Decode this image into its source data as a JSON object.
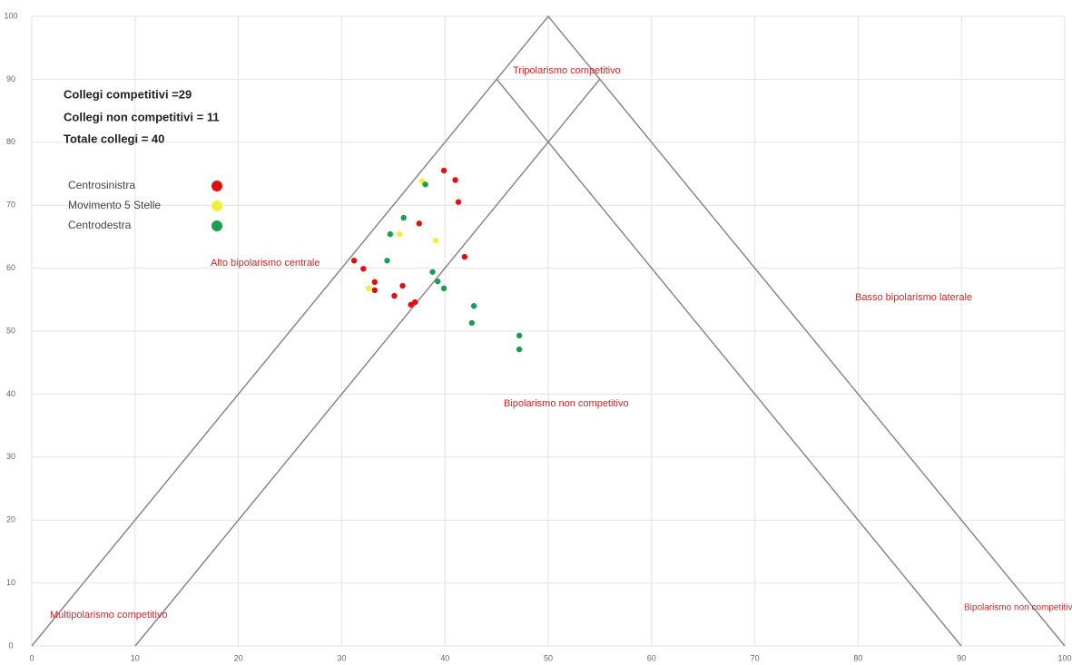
{
  "chart_data": {
    "type": "scatter",
    "info": [
      "Collegi competitivi =29",
      "Collegi non competitivi = 11",
      "Totale collegi = 40"
    ],
    "annotations": [
      "Tripolarismo competitivo",
      "Alto bipolarismo centrale",
      "Bipolarismo non competitivo",
      "Basso bipolarismo laterale",
      "Multipolarismo competitivo",
      "Bipolarismo non competitivo"
    ],
    "xlim": [
      0,
      100
    ],
    "ylim": [
      0,
      100
    ],
    "xticks": [
      0,
      10,
      20,
      30,
      40,
      50,
      60,
      70,
      80,
      90,
      100
    ],
    "yticks": [
      0,
      10,
      20,
      30,
      40,
      50,
      60,
      70,
      80,
      90,
      100
    ],
    "grid": true,
    "series": [
      {
        "name": "Centrosinistra",
        "color": "#e01010",
        "x": [
          39.9,
          41.0,
          41.3,
          37.5,
          41.9,
          31.2,
          32.1,
          33.2,
          33.2,
          35.1,
          35.9,
          37.1,
          36.7
        ],
        "values": [
          75.5,
          74.0,
          70.5,
          67.1,
          61.8,
          61.2,
          59.9,
          57.8,
          56.5,
          55.6,
          57.2,
          54.6,
          54.2
        ]
      },
      {
        "name": "Movimento 5 Stelle",
        "color": "#f2ef3a",
        "x": [
          37.8,
          39.1,
          32.6,
          35.6
        ],
        "values": [
          73.8,
          64.4,
          56.8,
          65.4
        ]
      },
      {
        "name": "Centrodestra",
        "color": "#18a050",
        "x": [
          38.1,
          34.7,
          34.4,
          38.8,
          39.3,
          39.9,
          42.8,
          42.6,
          47.2,
          47.2,
          36.0
        ],
        "values": [
          73.3,
          65.4,
          61.2,
          59.4,
          57.9,
          56.8,
          54.0,
          51.3,
          49.3,
          47.1,
          68.0
        ]
      }
    ]
  }
}
